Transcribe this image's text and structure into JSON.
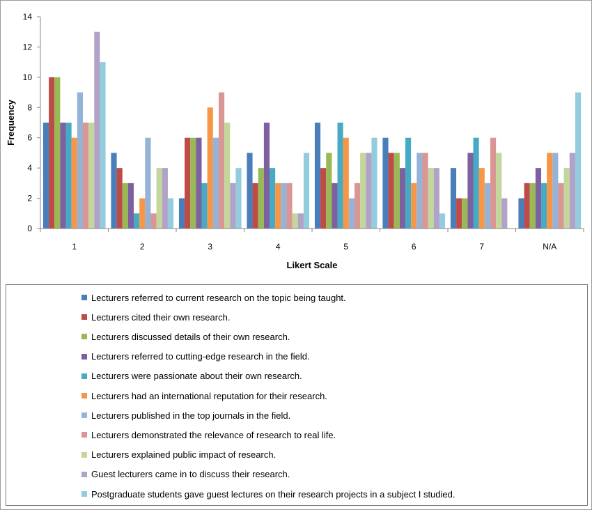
{
  "chart_data": {
    "type": "bar",
    "xlabel": "Likert Scale",
    "ylabel": "Frequency",
    "ylim": [
      0,
      14
    ],
    "yticks": [
      0,
      2,
      4,
      6,
      8,
      10,
      12,
      14
    ],
    "categories": [
      "1",
      "2",
      "3",
      "4",
      "5",
      "6",
      "7",
      "N/A"
    ],
    "grid": false,
    "legend_position": "bottom",
    "series": [
      {
        "name": "Lecturers referred to current research on the topic being taught.",
        "color": "#4a7ebb",
        "values": [
          7,
          5,
          2,
          5,
          7,
          6,
          4,
          2
        ]
      },
      {
        "name": "Lecturers cited their own research.",
        "color": "#be4b48",
        "values": [
          10,
          4,
          6,
          3,
          4,
          5,
          2,
          3
        ]
      },
      {
        "name": "Lecturers discussed details of their own research.",
        "color": "#98b954",
        "values": [
          10,
          3,
          6,
          4,
          5,
          5,
          2,
          3
        ]
      },
      {
        "name": "Lecturers referred to cutting-edge research in the field.",
        "color": "#7d60a0",
        "values": [
          7,
          3,
          6,
          7,
          3,
          4,
          5,
          4
        ]
      },
      {
        "name": "Lecturers were passionate about their own research.",
        "color": "#46aac5",
        "values": [
          7,
          1,
          3,
          4,
          7,
          6,
          6,
          3
        ]
      },
      {
        "name": "Lecturers had an international reputation for their research.",
        "color": "#f79646",
        "values": [
          6,
          2,
          8,
          3,
          6,
          3,
          4,
          5
        ]
      },
      {
        "name": "Lecturers published in the top journals in the field.",
        "color": "#95b3d7",
        "values": [
          9,
          6,
          6,
          3,
          2,
          5,
          3,
          5
        ]
      },
      {
        "name": "Lecturers demonstrated the relevance of research to real life.",
        "color": "#d99694",
        "values": [
          7,
          1,
          9,
          3,
          3,
          5,
          6,
          3
        ]
      },
      {
        "name": "Lecturers explained public impact of research.",
        "color": "#c3d69b",
        "values": [
          7,
          4,
          7,
          1,
          5,
          4,
          5,
          4
        ]
      },
      {
        "name": "Guest lecturers came in to discuss their research.",
        "color": "#b2a2c7",
        "values": [
          13,
          4,
          3,
          1,
          5,
          4,
          2,
          5
        ]
      },
      {
        "name": "Postgraduate students gave guest lectures on their research projects in a subject I studied.",
        "color": "#93cddd",
        "values": [
          11,
          2,
          4,
          5,
          6,
          1,
          0,
          9
        ]
      }
    ]
  }
}
